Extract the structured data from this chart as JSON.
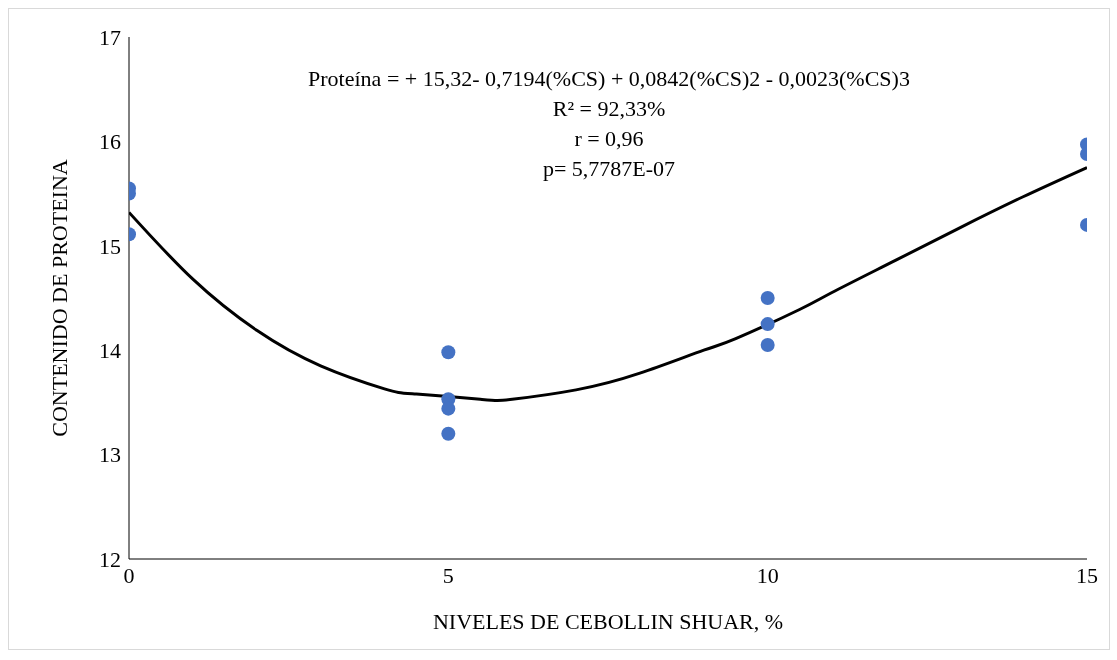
{
  "chart_data": {
    "type": "scatter",
    "xlabel": "NIVELES DE CEBOLLIN SHUAR, %",
    "ylabel": "CONTENIDO DE PROTEINA",
    "annotations": [
      "Proteína = + 15,32- 0,7194(%CS) + 0,0842(%CS)2 - 0,0023(%CS)3",
      "R² =  92,33%",
      "r = 0,96",
      "p=  5,7787E-07"
    ],
    "series": [
      {
        "color": "#4472c4",
        "x": [
          0,
          0,
          0,
          5,
          5,
          5,
          5,
          10,
          10,
          10,
          15,
          15,
          15
        ],
        "values": [
          15.55,
          15.5,
          15.11,
          13.98,
          13.53,
          13.44,
          13.2,
          14.5,
          14.25,
          14.05,
          15.97,
          15.88,
          15.2
        ]
      },
      {
        "type": "line",
        "color": "#000000",
        "marker": "none",
        "x": [
          0,
          1,
          2,
          3,
          4,
          4.5,
          5.5,
          6,
          7,
          8,
          9,
          9.5,
          10.5,
          11,
          12,
          13,
          14,
          15
        ],
        "values": [
          15.32,
          14.68,
          14.19,
          13.85,
          13.63,
          13.58,
          13.53,
          13.53,
          13.62,
          13.78,
          14.0,
          14.11,
          14.39,
          14.55,
          14.86,
          15.17,
          15.47,
          15.75
        ]
      }
    ],
    "xlim": [
      0,
      15
    ],
    "xticks": [
      0,
      5,
      10,
      15
    ],
    "ylim": [
      12,
      17
    ],
    "yticks": [
      12,
      13,
      14,
      15,
      16,
      17
    ],
    "grid": false,
    "marker": "circle"
  }
}
